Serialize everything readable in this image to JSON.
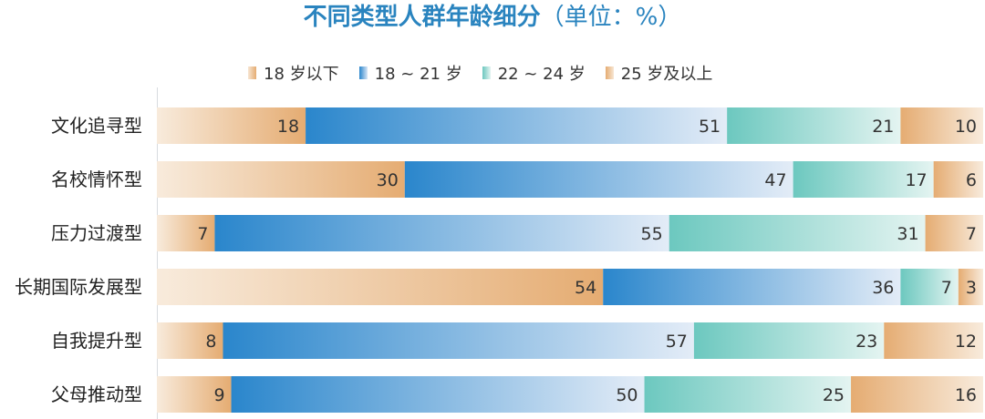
{
  "title": "不同类型人群年龄细分",
  "unit_label": "（单位：%）",
  "legend": [
    {
      "name": "18 岁以下",
      "icon": "swatch-orange"
    },
    {
      "name": "18 ~ 21 岁",
      "icon": "swatch-blue"
    },
    {
      "name": "22 ~ 24 岁",
      "icon": "swatch-teal"
    },
    {
      "name": "25 岁及以上",
      "icon": "swatch-orange"
    }
  ],
  "colors": {
    "orange": "#e5ac72",
    "orange_light": "#f8ebdc",
    "blue": "#2a86cc",
    "blue_light": "#e3ecf7",
    "teal": "#6cc8bf",
    "teal_light": "#e4f4f1",
    "title": "#2a84bf"
  },
  "chart_data": {
    "type": "bar",
    "orientation": "horizontal",
    "stacked": true,
    "title": "不同类型人群年龄细分",
    "categories": [
      "文化追寻型",
      "名校情怀型",
      "压力过渡型",
      "长期国际发展型",
      "自我提升型",
      "父母推动型"
    ],
    "series": [
      {
        "name": "18 岁以下",
        "values": [
          18,
          30,
          7,
          54,
          8,
          9
        ]
      },
      {
        "name": "18 ~ 21 岁",
        "values": [
          51,
          47,
          55,
          36,
          57,
          50
        ]
      },
      {
        "name": "22 ~ 24 岁",
        "values": [
          21,
          17,
          31,
          7,
          23,
          25
        ]
      },
      {
        "name": "25 岁及以上",
        "values": [
          10,
          6,
          7,
          3,
          12,
          16
        ]
      }
    ],
    "xlim": [
      0,
      100
    ],
    "grid": false,
    "legend_position": "top"
  }
}
